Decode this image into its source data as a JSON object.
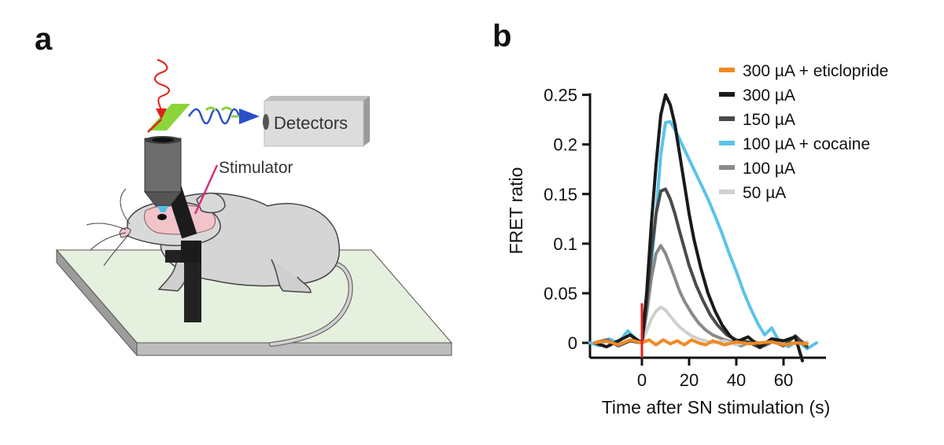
{
  "panel_a": {
    "letter": "a",
    "detectors_label": "Detectors",
    "stimulator_label": "Stimulator"
  },
  "panel_b": {
    "letter": "b"
  },
  "colors": {
    "orange": "#f08a24",
    "black": "#1a1a1a",
    "dark_gray": "#4a4a4a",
    "light_blue": "#5bc3ea",
    "mid_gray": "#8a8a8a",
    "light_gray": "#cfcfcf",
    "stim_marker": "#e3201b"
  },
  "chart_data": {
    "type": "line",
    "title": "",
    "xlabel": "Time after SN stimulation (s)",
    "ylabel": "FRET ratio",
    "xlim": [
      -22,
      78
    ],
    "ylim": [
      -0.015,
      0.26
    ],
    "xticks": [
      0,
      20,
      40,
      60
    ],
    "yticks": [
      0,
      0.05,
      0.1,
      0.15,
      0.2,
      0.25
    ],
    "ytick_labels": [
      "0",
      "0.05",
      "0.1",
      "0.15",
      "0.2",
      "0.25"
    ],
    "stimulation_time": 0,
    "series": [
      {
        "name": "300 µA + eticlopride",
        "color": "#f08a24",
        "x": [
          -20,
          -15,
          -10,
          -5,
          0,
          3,
          6,
          9,
          12,
          15,
          18,
          21,
          24,
          27,
          30,
          35,
          40,
          45,
          50,
          55,
          60,
          65,
          70
        ],
        "y": [
          0.0,
          0.002,
          -0.002,
          0.003,
          0.0,
          0.003,
          -0.002,
          0.003,
          -0.001,
          0.002,
          -0.002,
          0.003,
          0.0,
          -0.002,
          0.002,
          -0.002,
          0.001,
          -0.001,
          0.0,
          0.001,
          -0.002,
          0.0,
          -0.001
        ]
      },
      {
        "name": "300 µA",
        "color": "#1a1a1a",
        "x": [
          -20,
          -15,
          -10,
          -5,
          -2,
          0,
          2,
          4,
          6,
          8,
          10,
          12,
          14,
          16,
          18,
          20,
          22,
          25,
          28,
          31,
          34,
          37,
          40,
          45,
          50,
          55,
          60,
          65,
          68
        ],
        "y": [
          0.0,
          -0.004,
          0.002,
          0.008,
          0.003,
          0.0,
          0.05,
          0.12,
          0.18,
          0.23,
          0.25,
          0.24,
          0.22,
          0.19,
          0.16,
          0.13,
          0.105,
          0.075,
          0.05,
          0.032,
          0.018,
          0.008,
          0.001,
          0.006,
          -0.004,
          0.004,
          0.002,
          0.006,
          -0.018
        ]
      },
      {
        "name": "150 µA",
        "color": "#4a4a4a",
        "x": [
          -20,
          -15,
          -10,
          -5,
          0,
          2,
          4,
          6,
          8,
          10,
          12,
          14,
          16,
          18,
          20,
          23,
          26,
          29,
          32,
          36,
          40,
          45,
          50,
          55,
          60,
          65,
          70
        ],
        "y": [
          0.0,
          0.003,
          -0.003,
          0.002,
          0.0,
          0.04,
          0.09,
          0.13,
          0.153,
          0.155,
          0.145,
          0.13,
          0.112,
          0.095,
          0.078,
          0.058,
          0.042,
          0.028,
          0.018,
          0.008,
          0.003,
          0.001,
          -0.005,
          0.002,
          -0.003,
          0.007,
          -0.004
        ]
      },
      {
        "name": "100 µA + cocaine",
        "color": "#5bc3ea",
        "x": [
          -22,
          -18,
          -14,
          -10,
          -6,
          -3,
          0,
          2,
          4,
          6,
          8,
          10,
          12,
          14,
          16,
          18,
          20,
          22,
          25,
          28,
          31,
          34,
          37,
          40,
          43,
          46,
          49,
          52,
          55,
          58,
          62,
          66,
          70,
          74
        ],
        "y": [
          0.0,
          -0.003,
          0.004,
          0.0,
          0.012,
          0.005,
          0.0,
          0.03,
          0.08,
          0.13,
          0.19,
          0.222,
          0.223,
          0.215,
          0.205,
          0.195,
          0.185,
          0.175,
          0.16,
          0.145,
          0.128,
          0.11,
          0.09,
          0.072,
          0.052,
          0.035,
          0.02,
          0.008,
          0.015,
          0.002,
          -0.004,
          0.002,
          -0.006,
          0.0
        ]
      },
      {
        "name": "100 µA",
        "color": "#8a8a8a",
        "x": [
          -20,
          -15,
          -10,
          -5,
          0,
          2,
          4,
          6,
          8,
          10,
          12,
          14,
          16,
          18,
          21,
          24,
          27,
          30,
          34,
          38,
          42,
          47,
          52,
          57,
          62,
          67,
          70
        ],
        "y": [
          0.0,
          0.002,
          -0.002,
          0.003,
          0.0,
          0.03,
          0.065,
          0.09,
          0.098,
          0.09,
          0.078,
          0.065,
          0.052,
          0.042,
          0.03,
          0.02,
          0.013,
          0.008,
          0.004,
          0.001,
          -0.003,
          0.002,
          -0.003,
          0.003,
          -0.002,
          0.002,
          -0.001
        ]
      },
      {
        "name": "50 µA",
        "color": "#cfcfcf",
        "x": [
          -20,
          -15,
          -10,
          -5,
          0,
          2,
          4,
          6,
          8,
          10,
          12,
          14,
          16,
          18,
          21,
          24,
          27,
          30,
          35,
          40,
          45,
          50,
          55,
          60,
          65,
          70
        ],
        "y": [
          0.0,
          0.001,
          -0.002,
          0.002,
          0.0,
          0.012,
          0.024,
          0.032,
          0.036,
          0.033,
          0.027,
          0.021,
          0.016,
          0.012,
          0.007,
          0.004,
          0.002,
          0.0,
          0.002,
          -0.002,
          0.001,
          -0.002,
          0.002,
          0.0,
          -0.001,
          0.001
        ]
      }
    ]
  }
}
